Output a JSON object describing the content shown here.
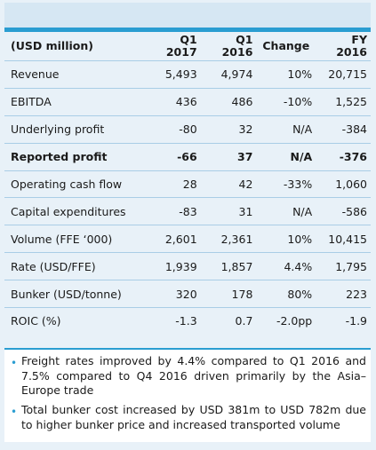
{
  "header": {
    "label": "(USD million)",
    "columns": [
      {
        "line1": "Q1",
        "line2": "2017"
      },
      {
        "line1": "Q1",
        "line2": "2016"
      },
      {
        "line1": "Change",
        "line2": ""
      },
      {
        "line1": "FY",
        "line2": "2016"
      }
    ]
  },
  "rows": [
    {
      "label": "Revenue",
      "q1_2017": "5,493",
      "q1_2016": "4,974",
      "change": "10%",
      "fy_2016": "20,715",
      "bold": false
    },
    {
      "label": "EBITDA",
      "q1_2017": "436",
      "q1_2016": "486",
      "change": "-10%",
      "fy_2016": "1,525",
      "bold": false
    },
    {
      "label": "Underlying profit",
      "q1_2017": "-80",
      "q1_2016": "32",
      "change": "N/A",
      "fy_2016": "-384",
      "bold": false
    },
    {
      "label": "Reported profit",
      "q1_2017": "-66",
      "q1_2016": "37",
      "change": "N/A",
      "fy_2016": "-376",
      "bold": true
    },
    {
      "label": "Operating cash flow",
      "q1_2017": "28",
      "q1_2016": "42",
      "change": "-33%",
      "fy_2016": "1,060",
      "bold": false
    },
    {
      "label": "Capital expenditures",
      "q1_2017": "-83",
      "q1_2016": "31",
      "change": "N/A",
      "fy_2016": "-586",
      "bold": false
    },
    {
      "label": "Volume (FFE ‘000)",
      "q1_2017": "2,601",
      "q1_2016": "2,361",
      "change": "10%",
      "fy_2016": "10,415",
      "bold": false
    },
    {
      "label": "Rate (USD/FFE)",
      "q1_2017": "1,939",
      "q1_2016": "1,857",
      "change": "4.4%",
      "fy_2016": "1,795",
      "bold": false
    },
    {
      "label": "Bunker (USD/tonne)",
      "q1_2017": "320",
      "q1_2016": "178",
      "change": "80%",
      "fy_2016": "223",
      "bold": false
    },
    {
      "label": "ROIC (%)",
      "q1_2017": "-1.3",
      "q1_2016": "0.7",
      "change": "-2.0pp",
      "fy_2016": "-1.9",
      "bold": false
    }
  ],
  "notes": {
    "bullet_symbol": "•",
    "items": [
      "Freight rates improved by 4.4% compared to Q1 2016 and 7.5% compared to Q4 2016 driven primarily by the Asia–Europe trade",
      "Total bunker cost increased by USD 381m to USD 782m due to higher bunker price and increased transported volume"
    ]
  },
  "colors": {
    "accent": "#2a9dd1",
    "background": "#e8f1f8",
    "header_band": "#d6e7f3",
    "row_divider": "#a9cde6"
  }
}
